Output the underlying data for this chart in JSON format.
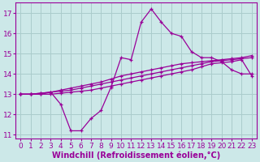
{
  "xlabel": "Windchill (Refroidissement éolien,°C)",
  "background_color": "#cce8e8",
  "grid_color": "#aacccc",
  "line_color": "#990099",
  "xlim": [
    -0.5,
    23.5
  ],
  "ylim": [
    10.8,
    17.5
  ],
  "yticks": [
    11,
    12,
    13,
    14,
    15,
    16,
    17
  ],
  "xticks": [
    0,
    1,
    2,
    3,
    4,
    5,
    6,
    7,
    8,
    9,
    10,
    11,
    12,
    13,
    14,
    15,
    16,
    17,
    18,
    19,
    20,
    21,
    22,
    23
  ],
  "lines": [
    [
      13.0,
      13.0,
      13.0,
      13.1,
      12.5,
      11.2,
      11.2,
      11.8,
      12.2,
      13.35,
      14.8,
      14.7,
      16.55,
      17.2,
      16.55,
      16.0,
      15.85,
      15.1,
      14.8,
      14.8,
      14.6,
      14.2,
      14.0,
      14.0
    ],
    [
      13.0,
      13.0,
      13.05,
      13.1,
      13.15,
      13.2,
      13.3,
      13.4,
      13.5,
      13.6,
      13.7,
      13.8,
      13.9,
      14.0,
      14.1,
      14.2,
      14.3,
      14.4,
      14.5,
      14.6,
      14.65,
      14.7,
      14.75,
      14.8
    ],
    [
      13.0,
      13.0,
      13.05,
      13.1,
      13.2,
      13.3,
      13.4,
      13.5,
      13.6,
      13.75,
      13.9,
      14.0,
      14.1,
      14.2,
      14.3,
      14.4,
      14.5,
      14.55,
      14.6,
      14.65,
      14.7,
      14.75,
      14.8,
      14.9
    ],
    [
      13.0,
      13.0,
      13.0,
      13.0,
      13.05,
      13.1,
      13.15,
      13.2,
      13.3,
      13.4,
      13.5,
      13.6,
      13.7,
      13.8,
      13.9,
      14.0,
      14.1,
      14.2,
      14.35,
      14.5,
      14.55,
      14.6,
      14.7,
      13.9
    ]
  ],
  "tick_fontsize": 6.5,
  "xlabel_fontsize": 7.0
}
